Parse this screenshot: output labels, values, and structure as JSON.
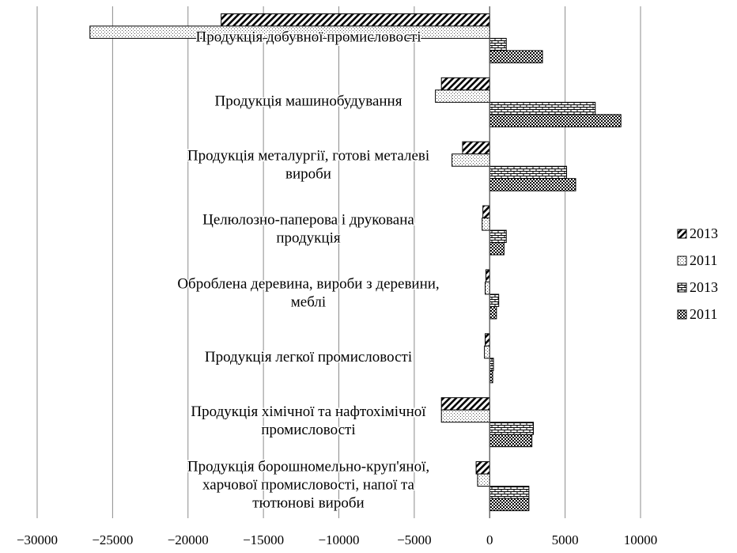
{
  "chart_data": {
    "type": "bar",
    "orientation": "horizontal",
    "title": "",
    "xlabel": "",
    "ylabel": "",
    "xlim": [
      -30000,
      10000
    ],
    "x_ticks": [
      -30000,
      -25000,
      -20000,
      -15000,
      -10000,
      -5000,
      0,
      5000,
      10000
    ],
    "x_tick_labels": [
      "−30000",
      "−25000",
      "−20000",
      "−15000",
      "−10000",
      "−5000",
      "0",
      "5000",
      "10000"
    ],
    "grid": "vertical",
    "legend_position": "right",
    "categories": [
      [
        "Продукція добувної промисловості"
      ],
      [
        "Продукція машинобудування"
      ],
      [
        "Продукція металургії,  готові металеві",
        "вироби"
      ],
      [
        "Целюлозно-паперова і друкована",
        "продукція"
      ],
      [
        "Оброблена деревина, вироби з деревини,",
        "меблі"
      ],
      [
        "Продукція легкої промисловості"
      ],
      [
        "Продукція хімічної та нафтохімічної",
        "промисловості"
      ],
      [
        "Продукція борошномельно-круп'яної,",
        "харчової промисловості,  напої та",
        "тютюнові вироби"
      ]
    ],
    "series": [
      {
        "name": "2013",
        "pattern": "diag",
        "values": [
          -17800,
          -3200,
          -1800,
          -450,
          -250,
          -300,
          -3200,
          -900
        ]
      },
      {
        "name": "2011",
        "pattern": "dots",
        "values": [
          -26500,
          -3600,
          -2500,
          -500,
          -300,
          -350,
          -3200,
          -800
        ]
      },
      {
        "name": "2013",
        "pattern": "brick",
        "values": [
          1100,
          7000,
          5100,
          1100,
          600,
          250,
          2900,
          2600
        ]
      },
      {
        "name": "2011",
        "pattern": "check",
        "values": [
          3500,
          8700,
          5700,
          950,
          450,
          200,
          2800,
          2600
        ]
      }
    ]
  }
}
